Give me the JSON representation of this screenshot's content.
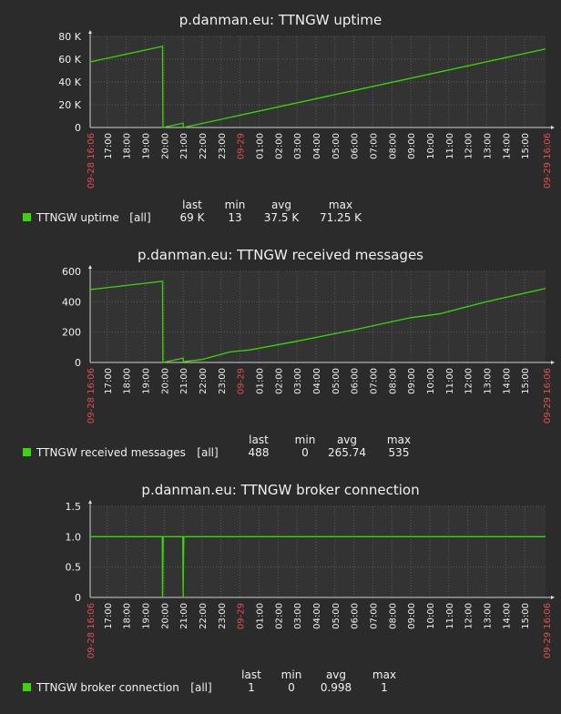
{
  "colors": {
    "background": "#2b2b2b",
    "plot_bg": "#333333",
    "grid": "#5a5a5a",
    "series": "#39d800",
    "date_label": "#e0504f",
    "text": "#f0f0f0"
  },
  "chart_data": [
    {
      "type": "line",
      "title": "p.danman.eu: TTNGW uptime",
      "x_start_label": "09-28 16:06",
      "x_end_label": "09-29 16:06",
      "x_ticks": [
        "17:00",
        "18:00",
        "19:00",
        "20:00",
        "21:00",
        "22:00",
        "23:00",
        "09-29",
        "01:00",
        "02:00",
        "03:00",
        "04:00",
        "05:00",
        "06:00",
        "07:00",
        "08:00",
        "09:00",
        "10:00",
        "11:00",
        "12:00",
        "13:00",
        "14:00",
        "15:00"
      ],
      "y_ticks": [
        "0",
        "20 K",
        "40 K",
        "60 K",
        "80 K"
      ],
      "ylim": [
        0,
        80000
      ],
      "grid": true,
      "series": [
        {
          "name": "TTNGW uptime",
          "color": "#39d800",
          "points": [
            [
              "09-28 16:06",
              57600
            ],
            [
              "09-28 19:55",
              71250
            ],
            [
              "09-28 19:56",
              13
            ],
            [
              "09-28 21:00",
              3800
            ],
            [
              "09-28 21:01",
              13
            ],
            [
              "09-29 16:06",
              69000
            ]
          ]
        }
      ],
      "legend": {
        "headers": [
          "last",
          "min",
          "avg",
          "max"
        ],
        "rows": [
          {
            "name": "TTNGW uptime",
            "group": "[all]",
            "values": [
              "69 K",
              "13",
              "37.5 K",
              "71.25 K"
            ]
          }
        ]
      }
    },
    {
      "type": "line",
      "title": "p.danman.eu: TTNGW received messages",
      "x_start_label": "09-28 16:06",
      "x_end_label": "09-29 16:06",
      "x_ticks": [
        "17:00",
        "18:00",
        "19:00",
        "20:00",
        "21:00",
        "22:00",
        "23:00",
        "09-29",
        "01:00",
        "02:00",
        "03:00",
        "04:00",
        "05:00",
        "06:00",
        "07:00",
        "08:00",
        "09:00",
        "10:00",
        "11:00",
        "12:00",
        "13:00",
        "14:00",
        "15:00"
      ],
      "y_ticks": [
        "0",
        "200",
        "400",
        "600"
      ],
      "ylim": [
        0,
        600
      ],
      "grid": true,
      "series": [
        {
          "name": "TTNGW received messages",
          "color": "#39d800",
          "points": [
            [
              "09-28 16:06",
              480
            ],
            [
              "09-28 19:55",
              535
            ],
            [
              "09-28 19:56",
              0
            ],
            [
              "09-28 21:00",
              28
            ],
            [
              "09-28 21:01",
              5
            ],
            [
              "09-28 22:00",
              20
            ],
            [
              "09-28 23:30",
              70
            ],
            [
              "09-29 00:30",
              82
            ],
            [
              "09-29 03:00",
              140
            ],
            [
              "09-29 06:00",
              215
            ],
            [
              "09-29 09:00",
              295
            ],
            [
              "09-29 10:30",
              320
            ],
            [
              "09-29 13:00",
              400
            ],
            [
              "09-29 16:06",
              488
            ]
          ]
        }
      ],
      "legend": {
        "headers": [
          "last",
          "min",
          "avg",
          "max"
        ],
        "rows": [
          {
            "name": "TTNGW received messages",
            "group": "[all]",
            "values": [
              "488",
              "0",
              "265.74",
              "535"
            ]
          }
        ]
      }
    },
    {
      "type": "line",
      "title": "p.danman.eu: TTNGW broker connection",
      "x_start_label": "09-28 16:06",
      "x_end_label": "09-29 16:06",
      "x_ticks": [
        "17:00",
        "18:00",
        "19:00",
        "20:00",
        "21:00",
        "22:00",
        "23:00",
        "09-29",
        "01:00",
        "02:00",
        "03:00",
        "04:00",
        "05:00",
        "06:00",
        "07:00",
        "08:00",
        "09:00",
        "10:00",
        "11:00",
        "12:00",
        "13:00",
        "14:00",
        "15:00"
      ],
      "y_ticks": [
        "0",
        "0.5",
        "1.0",
        "1.5"
      ],
      "ylim": [
        0,
        1.5
      ],
      "grid": true,
      "series": [
        {
          "name": "TTNGW broker connection",
          "color": "#39d800",
          "points": [
            [
              "09-28 16:06",
              1
            ],
            [
              "09-28 19:54",
              1
            ],
            [
              "09-28 19:55",
              0
            ],
            [
              "09-28 19:57",
              1
            ],
            [
              "09-28 20:59",
              1
            ],
            [
              "09-28 21:00",
              0
            ],
            [
              "09-28 21:02",
              1
            ],
            [
              "09-29 16:06",
              1
            ]
          ]
        }
      ],
      "legend": {
        "headers": [
          "last",
          "min",
          "avg",
          "max"
        ],
        "rows": [
          {
            "name": "TTNGW broker connection",
            "group": "[all]",
            "values": [
              "1",
              "0",
              "0.998",
              "1"
            ]
          }
        ]
      }
    }
  ]
}
